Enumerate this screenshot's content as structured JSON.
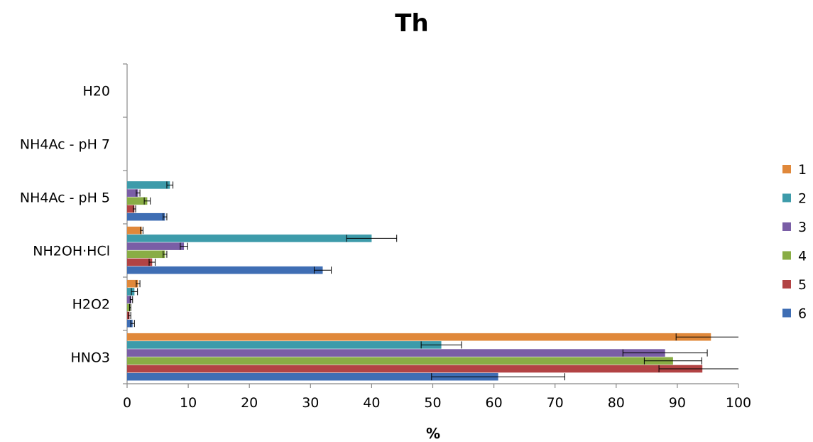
{
  "chart_data": {
    "type": "bar",
    "orientation": "horizontal",
    "title": "Th",
    "xlabel": "%",
    "ylabel": "",
    "xlim": [
      0,
      100
    ],
    "x_ticks": [
      "0",
      "10",
      "20",
      "30",
      "40",
      "50",
      "60",
      "70",
      "80",
      "90",
      "100"
    ],
    "categories": [
      "H20",
      "NH4Ac - pH 7",
      "NH4Ac - pH 5",
      "NH2OH·HCl",
      "H2O2",
      "HNO3"
    ],
    "legend_position": "right",
    "grid": false,
    "series": [
      {
        "name": "1",
        "color": "#E0883A",
        "values": [
          0,
          0,
          0,
          2.4,
          1.8,
          95.5
        ],
        "errors": [
          0,
          0,
          0,
          0.2,
          0.3,
          5.7
        ]
      },
      {
        "name": "2",
        "color": "#3D9BAA",
        "values": [
          0,
          0,
          7.0,
          40.0,
          1.2,
          51.4
        ],
        "errors": [
          0,
          0,
          0.5,
          4.1,
          0.5,
          3.3
        ]
      },
      {
        "name": "3",
        "color": "#7A5EA6",
        "values": [
          0,
          0,
          1.8,
          9.3,
          0.7,
          88.0
        ],
        "errors": [
          0,
          0,
          0.3,
          0.6,
          0.2,
          6.9
        ]
      },
      {
        "name": "4",
        "color": "#89AD45",
        "values": [
          0,
          0,
          3.3,
          6.2,
          0.5,
          89.3
        ],
        "errors": [
          0,
          0,
          0.5,
          0.3,
          0.1,
          4.7
        ]
      },
      {
        "name": "5",
        "color": "#B24344",
        "values": [
          0,
          0,
          1.2,
          4.1,
          0.4,
          94.1
        ],
        "errors": [
          0,
          0,
          0.2,
          0.5,
          0.2,
          7.1
        ]
      },
      {
        "name": "6",
        "color": "#3F6EB4",
        "values": [
          0,
          0,
          6.2,
          32.0,
          0.9,
          60.7
        ],
        "errors": [
          0,
          0,
          0.3,
          1.4,
          0.3,
          10.9
        ]
      }
    ]
  }
}
